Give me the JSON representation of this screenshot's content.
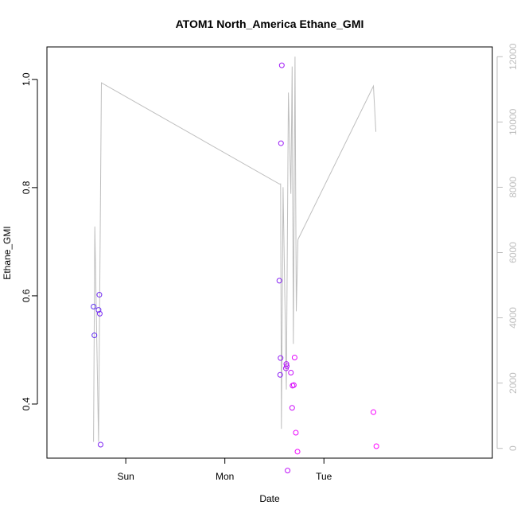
{
  "chart_data": {
    "type": "scatter",
    "title": "ATOM1 North_America Ethane_GMI",
    "xlabel": "Date",
    "ylabel": "Ethane_GMI",
    "x_axis": {
      "kind": "time",
      "range_hours": [
        -19.1,
        88.8
      ],
      "ticks": [
        {
          "label": "Sun",
          "hours": 0
        },
        {
          "label": "Mon",
          "hours": 24
        },
        {
          "label": "Tue",
          "hours": 48
        }
      ]
    },
    "y_left": {
      "range": [
        0.3,
        1.06
      ],
      "ticks": [
        0.4,
        0.6,
        0.8,
        1.0
      ],
      "tick_labels": [
        "0.4",
        "0.6",
        "0.8",
        "1.0"
      ]
    },
    "y_right": {
      "range": [
        -300,
        12300
      ],
      "ticks": [
        0,
        2000,
        4000,
        6000,
        8000,
        10000,
        12000
      ],
      "tick_labels": [
        "0",
        "2000",
        "4000",
        "6000",
        "8000",
        "10000",
        "12000"
      ],
      "color": "#bebebe"
    },
    "series": [
      {
        "kind": "points",
        "axis": "left",
        "color_start": "#5b2ff0",
        "color_end": "#ff00ff",
        "points": [
          {
            "x": -7.8,
            "y": 0.58
          },
          {
            "x": -7.6,
            "y": 0.527
          },
          {
            "x": -6.6,
            "y": 0.574
          },
          {
            "x": -6.4,
            "y": 0.602
          },
          {
            "x": -6.3,
            "y": 0.567
          },
          {
            "x": -6.1,
            "y": 0.325
          },
          {
            "x": 37.2,
            "y": 0.628
          },
          {
            "x": 37.4,
            "y": 0.454
          },
          {
            "x": 37.5,
            "y": 0.485
          },
          {
            "x": 37.6,
            "y": 0.882
          },
          {
            "x": 37.8,
            "y": 1.026
          },
          {
            "x": 38.8,
            "y": 0.466
          },
          {
            "x": 38.9,
            "y": 0.474
          },
          {
            "x": 39.0,
            "y": 0.47
          },
          {
            "x": 39.2,
            "y": 0.277
          },
          {
            "x": 40.0,
            "y": 0.458
          },
          {
            "x": 40.3,
            "y": 0.393
          },
          {
            "x": 40.4,
            "y": 0.434
          },
          {
            "x": 40.7,
            "y": 0.435
          },
          {
            "x": 40.9,
            "y": 0.486
          },
          {
            "x": 41.2,
            "y": 0.347
          },
          {
            "x": 41.6,
            "y": 0.312
          },
          {
            "x": 60.0,
            "y": 0.385
          },
          {
            "x": 60.7,
            "y": 0.322
          }
        ]
      },
      {
        "kind": "line",
        "axis": "right",
        "color": "#bebebe",
        "points": [
          {
            "x": -7.8,
            "y": 200
          },
          {
            "x": -7.5,
            "y": 6800
          },
          {
            "x": -6.6,
            "y": 200
          },
          {
            "x": -5.9,
            "y": 11200
          },
          {
            "x": 37.2,
            "y": 8100
          },
          {
            "x": 37.5,
            "y": 8100
          },
          {
            "x": 37.7,
            "y": 600
          },
          {
            "x": 38.1,
            "y": 8000
          },
          {
            "x": 38.9,
            "y": 1800
          },
          {
            "x": 39.4,
            "y": 10900
          },
          {
            "x": 40.0,
            "y": 7800
          },
          {
            "x": 40.3,
            "y": 11700
          },
          {
            "x": 40.6,
            "y": 3200
          },
          {
            "x": 41.0,
            "y": 12000
          },
          {
            "x": 41.3,
            "y": 4200
          },
          {
            "x": 41.7,
            "y": 6400
          },
          {
            "x": 60.0,
            "y": 11100
          },
          {
            "x": 60.6,
            "y": 9700
          }
        ]
      }
    ]
  }
}
